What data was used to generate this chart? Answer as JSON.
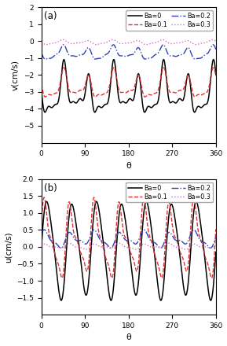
{
  "subplot_a": {
    "label": "(a)",
    "ylabel": "v(cm/s)",
    "xlabel": "θ",
    "ylim": [
      -6,
      2
    ],
    "yticks": [
      2,
      1,
      0,
      -1,
      -2,
      -3,
      -4,
      -5
    ],
    "xticks": [
      0,
      90,
      180,
      270,
      360
    ],
    "legend": [
      {
        "label": "Ba=0",
        "color": "#000000",
        "ls": "-",
        "lw": 1.1
      },
      {
        "label": "Ba=0.1",
        "color": "#e03030",
        "ls": "--",
        "lw": 1.0
      },
      {
        "label": "Ba=0.2",
        "color": "#3040bb",
        "ls": "-.",
        "lw": 1.0
      },
      {
        "label": "Ba=0.3",
        "color": "#cc70cc",
        "ls": ":",
        "lw": 1.0
      }
    ]
  },
  "subplot_b": {
    "label": "(b)",
    "ylabel": "u(cm/s)",
    "xlabel": "θ",
    "ylim": [
      -2.0,
      2.0
    ],
    "yticks": [
      2.0,
      1.5,
      1.0,
      0.5,
      0.0,
      -0.5,
      -1.0,
      -1.5
    ],
    "xticks": [
      0,
      90,
      180,
      270,
      360
    ],
    "legend": [
      {
        "label": "Ba=0",
        "color": "#000000",
        "ls": "-",
        "lw": 1.1
      },
      {
        "label": "Ba=0.1",
        "color": "#e03030",
        "ls": "--",
        "lw": 1.0
      },
      {
        "label": "Ba=0.2",
        "color": "#3040bb",
        "ls": "-.",
        "lw": 1.0
      },
      {
        "label": "Ba=0.3",
        "color": "#cc70cc",
        "ls": ":",
        "lw": 1.0
      }
    ]
  },
  "fig_bg": "#ffffff"
}
